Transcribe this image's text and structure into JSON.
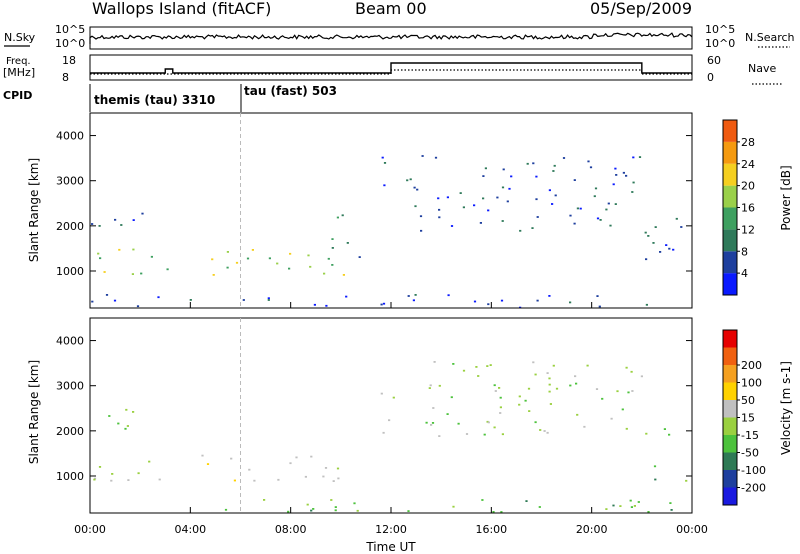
{
  "header": {
    "station": "Wallops Island (fitACF)",
    "beam": "Beam 00",
    "date": "05/Sep/2009"
  },
  "strips": {
    "nsky": {
      "label": "N.Sky",
      "tick_top": "10^5",
      "tick_bottom": "10^0",
      "right_label": "N.Search",
      "right_tick_top": "10^5",
      "right_tick_bottom": "10^0"
    },
    "freq": {
      "label_line1": "Freq.",
      "label_line2": "[MHz]",
      "tick_top": "18",
      "tick_bottom": "8",
      "right_label": "Nave",
      "right_tick_top": "60",
      "right_tick_bottom": "0"
    },
    "cpid": {
      "label": "CPID",
      "mode1": "themis (tau) 3310",
      "mode2": "tau (fast) 503"
    }
  },
  "colors": {
    "power": [
      "#0a1aff",
      "#1e3f9e",
      "#2f7a5a",
      "#3ea060",
      "#9ad04a",
      "#f5cf20",
      "#f59a10",
      "#ef5a10",
      "#e80000"
    ],
    "velocity": [
      "#e60000",
      "#f06010",
      "#f5a020",
      "#ffd200",
      "#c0c0c0",
      "#9ad040",
      "#4cc23c",
      "#2e7a55",
      "#1e3f9e",
      "#1a1ae0"
    ]
  },
  "chart_data": [
    {
      "type": "heatmap",
      "name": "power",
      "ylabel": "Slant Range [km]",
      "ylim": [
        180,
        4500
      ],
      "yticks": [
        "1000",
        "2000",
        "3000",
        "4000"
      ],
      "colorbar": {
        "title": "Power [dB]",
        "ticks": [
          "4",
          "8",
          "12",
          "16",
          "20",
          "24",
          "28"
        ],
        "range": [
          0,
          32
        ]
      },
      "x": [
        "00:00",
        "04:00",
        "08:00",
        "12:00",
        "16:00",
        "20:00",
        "00:00"
      ],
      "regions": [
        {
          "t": [
            0.0,
            11.0
          ],
          "r": [
            900,
            1500
          ],
          "value": 18
        },
        {
          "t": [
            0.0,
            2.5
          ],
          "r": [
            1900,
            2500
          ],
          "value": 8
        },
        {
          "t": [
            9.5,
            11.0
          ],
          "r": [
            1100,
            2300
          ],
          "value": 10
        },
        {
          "t": [
            11.5,
            22.0
          ],
          "r": [
            1900,
            3600
          ],
          "value": 6
        },
        {
          "t": [
            22.0,
            24.0
          ],
          "r": [
            900,
            2300
          ],
          "value": 7
        },
        {
          "t": [
            0.0,
            24.0
          ],
          "r": [
            200,
            500
          ],
          "value": 5
        }
      ]
    },
    {
      "type": "heatmap",
      "name": "velocity",
      "xlabel": "Time UT",
      "ylabel": "Slant Range [km]",
      "ylim": [
        180,
        4500
      ],
      "yticks": [
        "1000",
        "2000",
        "3000",
        "4000"
      ],
      "colorbar": {
        "title": "Velocity [m s-1]",
        "ticks": [
          "200",
          "100",
          "50",
          "15",
          "-15",
          "-50",
          "-100",
          "-200"
        ]
      },
      "x": [
        "00:00",
        "04:00",
        "08:00",
        "12:00",
        "16:00",
        "20:00",
        "00:00"
      ],
      "regions": [
        {
          "t": [
            0.0,
            11.0
          ],
          "r": [
            900,
            1500
          ],
          "value": 30
        },
        {
          "t": [
            0.0,
            2.5
          ],
          "r": [
            1900,
            2500
          ],
          "value": 0
        },
        {
          "t": [
            11.5,
            22.0
          ],
          "r": [
            1900,
            3600
          ],
          "value": 0
        },
        {
          "t": [
            22.0,
            24.0
          ],
          "r": [
            900,
            1300
          ],
          "value": -40
        },
        {
          "t": [
            22.0,
            24.0
          ],
          "r": [
            1900,
            2300
          ],
          "value": -20
        },
        {
          "t": [
            0.0,
            24.0
          ],
          "r": [
            200,
            500
          ],
          "value": -30
        }
      ]
    }
  ]
}
